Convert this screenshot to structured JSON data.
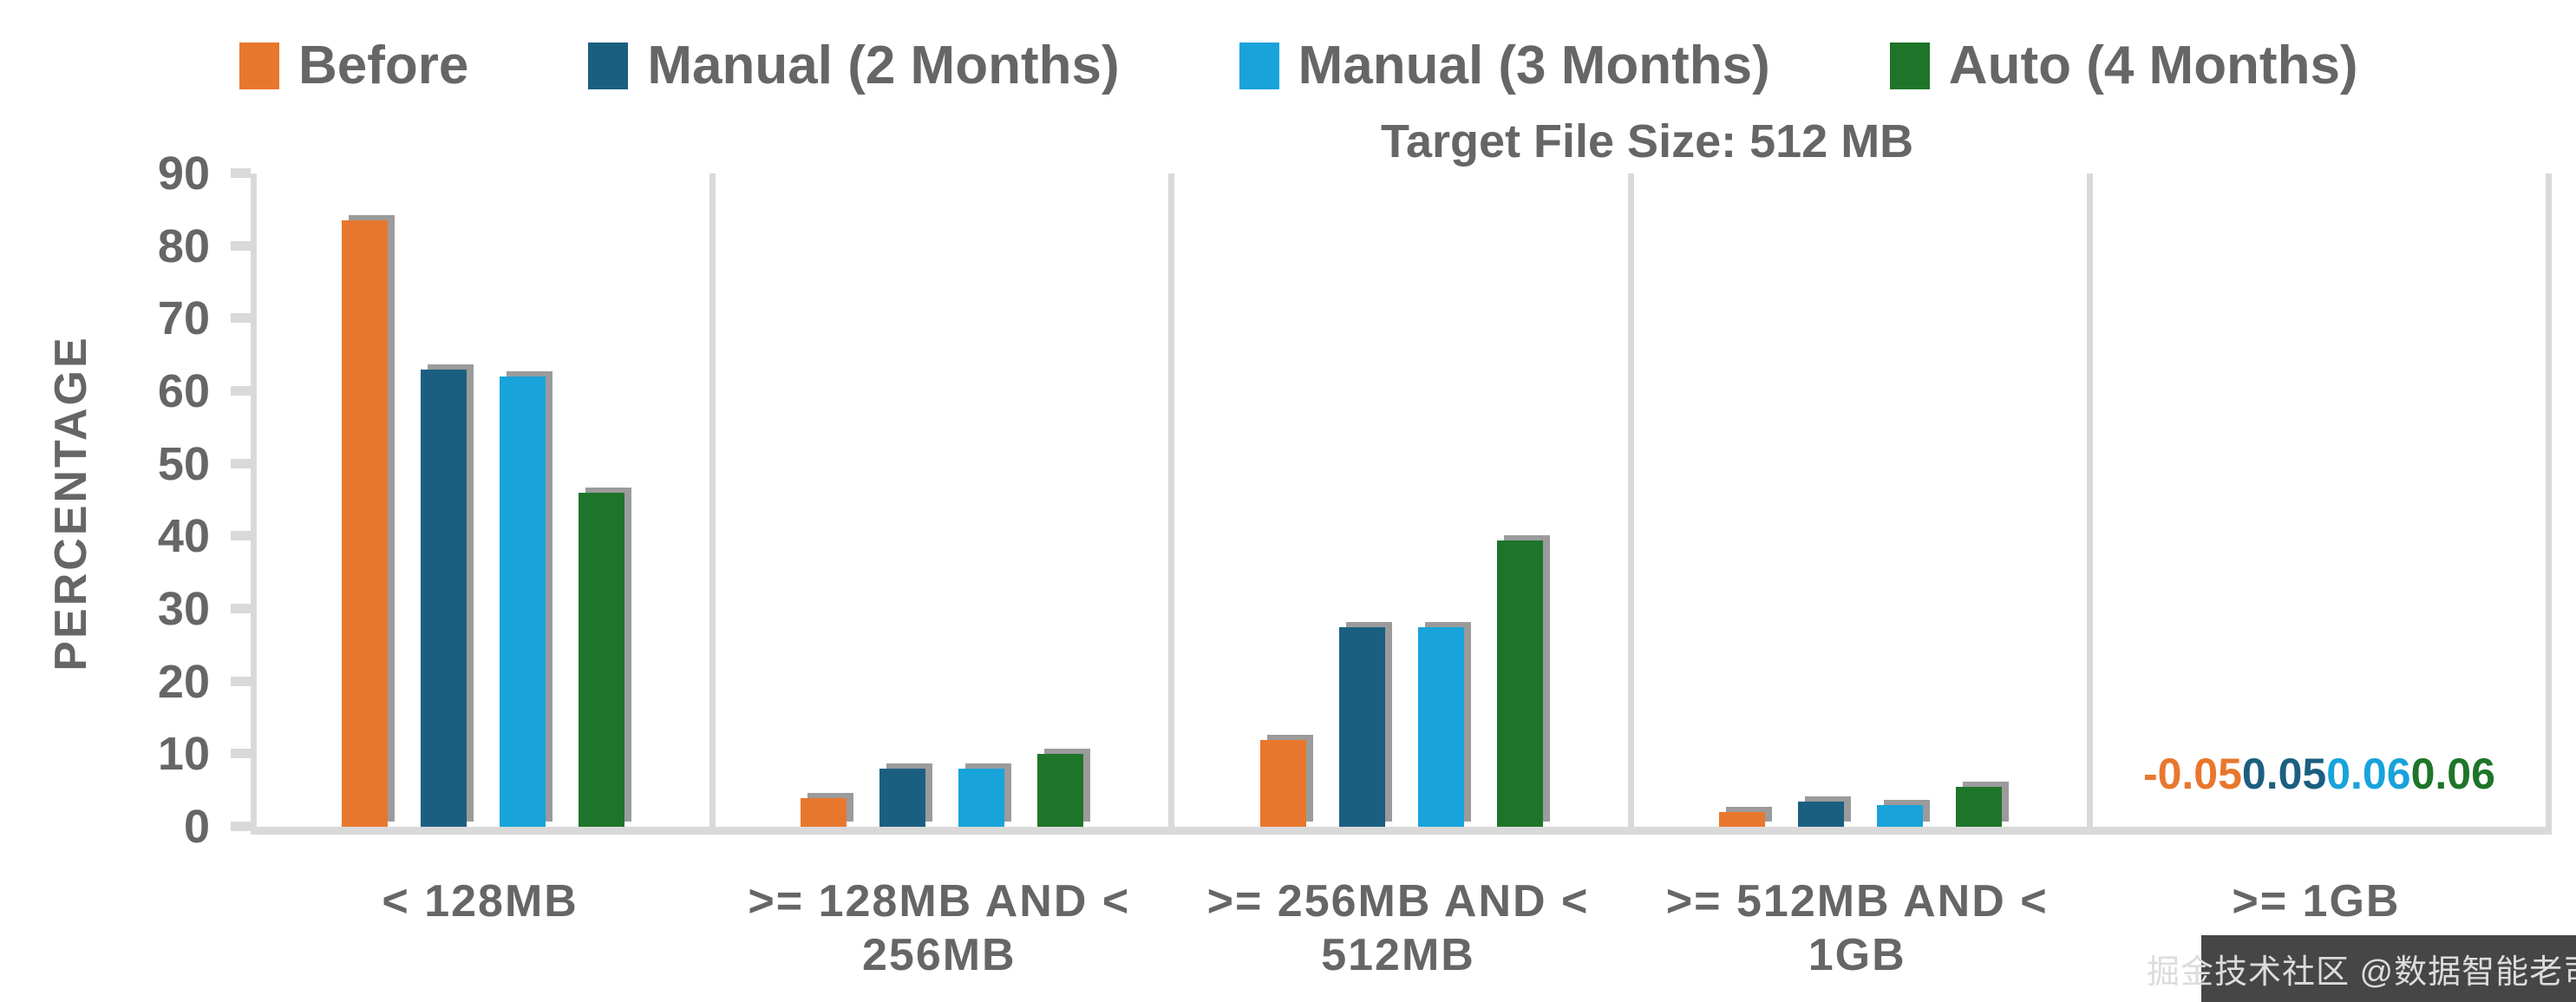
{
  "title": "Target File Size: 512 MB",
  "y_axis": {
    "title": "PERCENTAGE",
    "min": 0,
    "max": 90,
    "step": 10
  },
  "legend": {
    "items": [
      {
        "label": "Before",
        "color": "#E8772E"
      },
      {
        "label": "Manual (2 Months)",
        "color": "#1B5F80"
      },
      {
        "label": "Manual (3 Months)",
        "color": "#18A3DB"
      },
      {
        "label": "Auto (4 Months)",
        "color": "#1E7529"
      }
    ]
  },
  "watermark": "掘金技术社区 @数据智能老司机",
  "chart_data": {
    "type": "bar",
    "title": "Target File Size: 512 MB",
    "xlabel": "",
    "ylabel": "PERCENTAGE",
    "ylim": [
      0,
      90
    ],
    "ytick_step": 10,
    "grid": false,
    "legend_position": "top",
    "categories": [
      "< 128MB",
      ">= 128MB AND < 256MB",
      ">= 256MB AND < 512MB",
      ">= 512MB AND < 1GB",
      ">= 1GB"
    ],
    "category_lines": [
      [
        "< 128MB"
      ],
      [
        ">= 128MB AND <",
        "256MB"
      ],
      [
        ">= 256MB AND <",
        "512MB"
      ],
      [
        ">= 512MB AND <",
        "1GB"
      ],
      [
        ">= 1GB"
      ]
    ],
    "series": [
      {
        "name": "Before",
        "color": "#E8772E",
        "values": [
          83.5,
          4,
          12,
          2,
          -0.05
        ]
      },
      {
        "name": "Manual (2 Months)",
        "color": "#1B5F80",
        "values": [
          63,
          8,
          27.5,
          3.5,
          0.05
        ]
      },
      {
        "name": "Manual (3 Months)",
        "color": "#18A3DB",
        "values": [
          62,
          8,
          27.5,
          3,
          0.06
        ]
      },
      {
        "name": "Auto (4 Months)",
        "color": "#1E7529",
        "values": [
          46,
          10,
          39.5,
          5.5,
          0.06
        ]
      }
    ],
    "value_label_group_index": 4,
    "value_labels": [
      "-0.05",
      "0.05",
      "0.06",
      "0.06"
    ],
    "axis_color": "#D9D9D9",
    "text_color": "#666666",
    "bar_shadow_color": "#9B9B9B"
  }
}
